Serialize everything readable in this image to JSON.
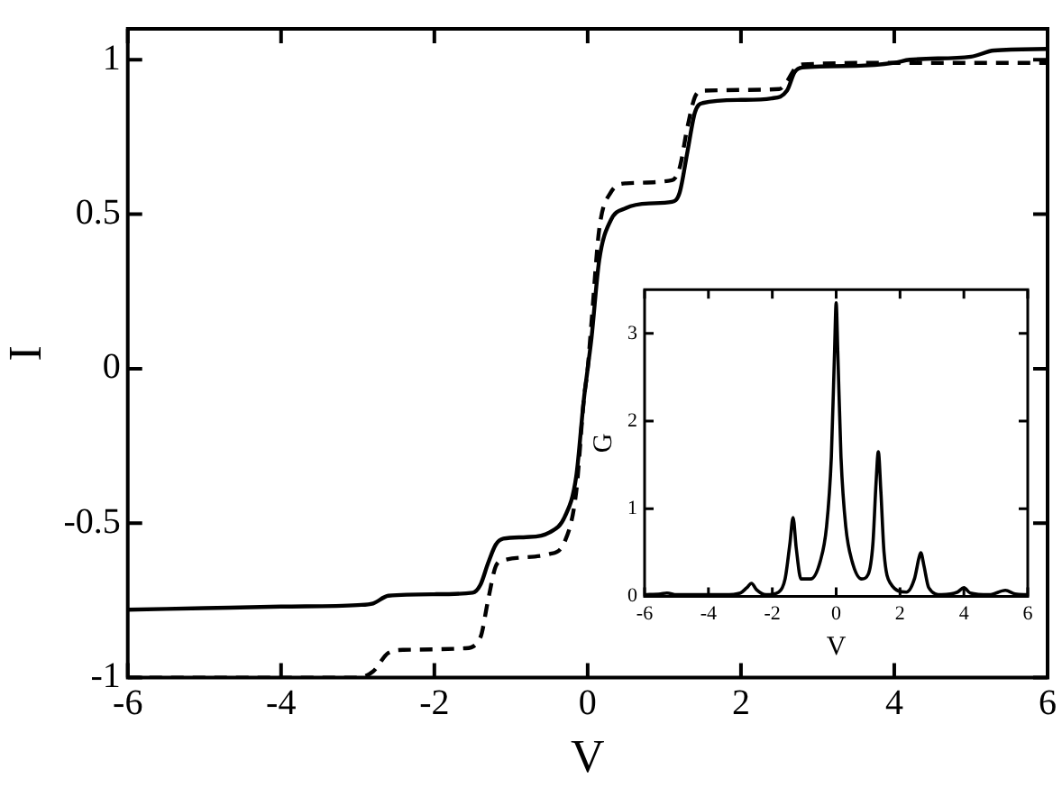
{
  "chart_data": [
    {
      "type": "line",
      "xlabel": "V",
      "ylabel": "I",
      "xlim": [
        -6,
        6
      ],
      "ylim": [
        -1,
        1.1
      ],
      "xticks": [
        -6,
        -4,
        -2,
        0,
        2,
        4,
        6
      ],
      "yticks": [
        -1,
        -0.5,
        0,
        0.5,
        1
      ],
      "grid": false,
      "legend": false,
      "marker": "none",
      "series": [
        {
          "color": "#000000",
          "line_style": "solid",
          "x": [
            -6,
            -5,
            -4,
            -3,
            -2.8,
            -2.6,
            -2,
            -1.5,
            -1.4,
            -1.3,
            -1.2,
            -1.1,
            -0.8,
            -0.5,
            -0.3,
            -0.15,
            -0.05,
            0,
            0.05,
            0.15,
            0.3,
            0.5,
            0.8,
            1.1,
            1.2,
            1.3,
            1.4,
            1.5,
            2,
            2.4,
            2.6,
            2.7,
            2.8,
            3.5,
            4,
            4.2,
            5,
            5.3,
            6
          ],
          "values": [
            -0.78,
            -0.775,
            -0.77,
            -0.765,
            -0.76,
            -0.735,
            -0.73,
            -0.725,
            -0.7,
            -0.63,
            -0.57,
            -0.55,
            -0.545,
            -0.53,
            -0.48,
            -0.35,
            -0.1,
            0,
            0.1,
            0.35,
            0.48,
            0.52,
            0.535,
            0.54,
            0.57,
            0.7,
            0.83,
            0.86,
            0.87,
            0.875,
            0.9,
            0.96,
            0.975,
            0.98,
            0.99,
            1.0,
            1.01,
            1.03,
            1.035
          ]
        },
        {
          "color": "#000000",
          "line_style": "dashed",
          "x": [
            -6,
            -3,
            -2.8,
            -2.6,
            -2.4,
            -1.6,
            -1.4,
            -1.3,
            -1.2,
            -1.1,
            -0.5,
            -0.3,
            -0.15,
            -0.05,
            0,
            0.05,
            0.15,
            0.3,
            0.5,
            1.1,
            1.2,
            1.3,
            1.4,
            1.5,
            2.5,
            2.6,
            2.7,
            2.8,
            4,
            6
          ],
          "values": [
            -1,
            -1,
            -0.98,
            -0.92,
            -0.91,
            -0.905,
            -0.87,
            -0.75,
            -0.64,
            -0.62,
            -0.6,
            -0.56,
            -0.4,
            -0.1,
            0,
            0.15,
            0.45,
            0.57,
            0.6,
            0.61,
            0.65,
            0.78,
            0.88,
            0.9,
            0.905,
            0.93,
            0.97,
            0.985,
            0.99,
            0.99
          ]
        }
      ]
    },
    {
      "type": "line",
      "xlabel": "V",
      "ylabel": "G",
      "xlim": [
        -6,
        6
      ],
      "ylim": [
        0,
        3.5
      ],
      "xticks": [
        -6,
        -4,
        -2,
        0,
        2,
        4,
        6
      ],
      "yticks": [
        0,
        1,
        2,
        3
      ],
      "grid": false,
      "legend": false,
      "marker": "none",
      "series": [
        {
          "color": "#000000",
          "line_style": "solid",
          "x": [
            -6,
            -5.5,
            -5.3,
            -5,
            -3.5,
            -3,
            -2.8,
            -2.65,
            -2.5,
            -2.2,
            -1.8,
            -1.6,
            -1.45,
            -1.35,
            -1.25,
            -1.1,
            -0.8,
            -0.5,
            -0.3,
            -0.15,
            -0.05,
            0,
            0.05,
            0.15,
            0.3,
            0.5,
            0.8,
            1.0,
            1.15,
            1.25,
            1.32,
            1.4,
            1.5,
            1.7,
            2.2,
            2.45,
            2.6,
            2.65,
            2.75,
            2.9,
            3.3,
            3.8,
            4,
            4.2,
            4.8,
            5.3,
            5.6,
            6
          ],
          "values": [
            0.02,
            0.03,
            0.04,
            0.02,
            0.02,
            0.04,
            0.1,
            0.15,
            0.08,
            0.02,
            0.05,
            0.2,
            0.6,
            0.9,
            0.55,
            0.2,
            0.2,
            0.4,
            0.8,
            1.6,
            2.8,
            3.35,
            2.8,
            1.6,
            0.8,
            0.4,
            0.2,
            0.25,
            0.6,
            1.3,
            1.65,
            1.2,
            0.5,
            0.15,
            0.05,
            0.2,
            0.45,
            0.5,
            0.35,
            0.1,
            0.02,
            0.05,
            0.1,
            0.04,
            0.02,
            0.07,
            0.03,
            0.02
          ]
        }
      ]
    }
  ]
}
